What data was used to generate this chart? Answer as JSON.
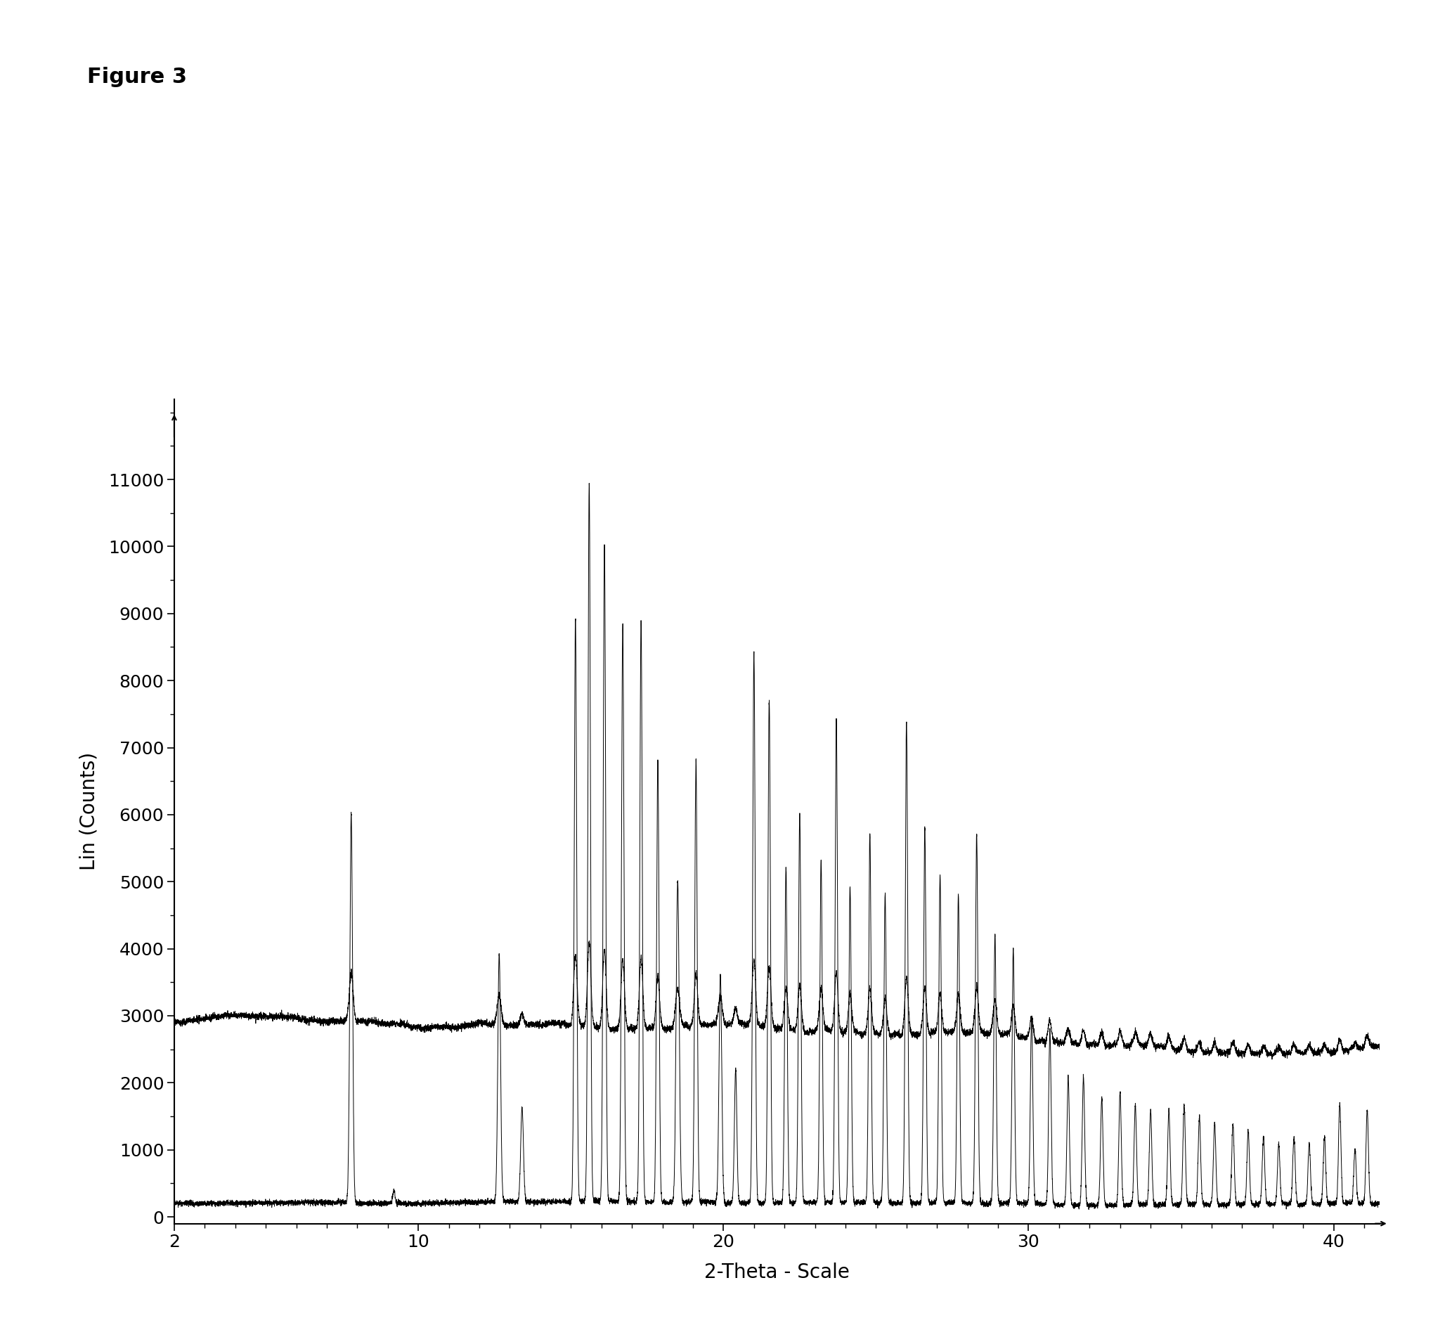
{
  "title": "Figure 3",
  "xlabel": "2-Theta - Scale",
  "ylabel": "Lin (Counts)",
  "xlim": [
    2,
    41.5
  ],
  "ylim": [
    -100,
    12200
  ],
  "yticks": [
    0,
    1000,
    2000,
    3000,
    4000,
    5000,
    6000,
    7000,
    8000,
    9000,
    10000,
    11000
  ],
  "xticks": [
    2,
    10,
    20,
    30,
    40
  ],
  "background_color": "#ffffff",
  "line_color": "#000000",
  "title_fontsize": 22,
  "label_fontsize": 20,
  "tick_fontsize": 18,
  "pattern1_baseline": 200,
  "pattern2_baseline": 2900
}
